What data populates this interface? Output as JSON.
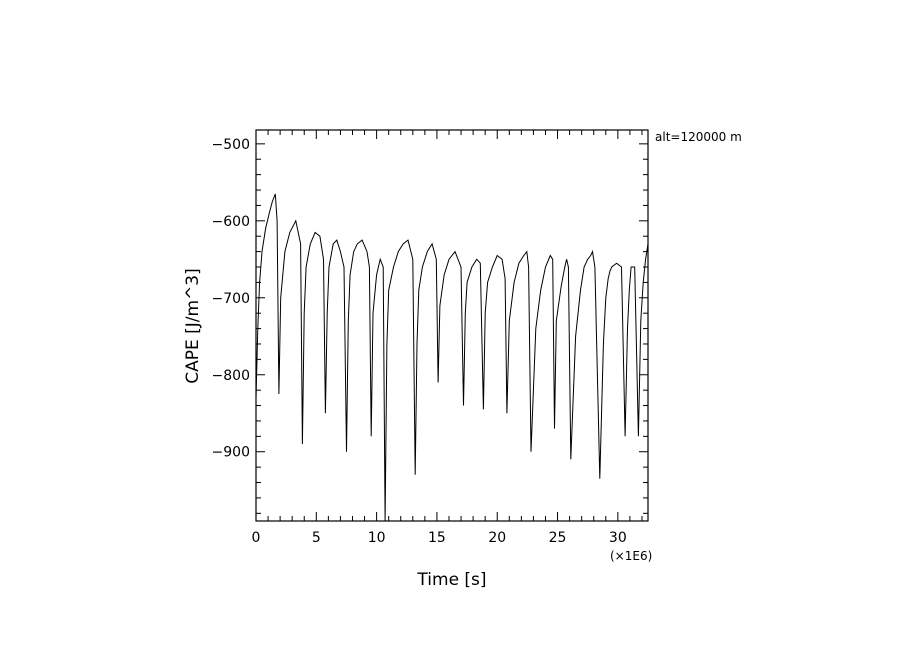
{
  "chart_data": {
    "type": "line",
    "title": "",
    "xlabel": "Time [s]",
    "ylabel": "CAPE [J/m^3]",
    "x_scale_note": "(×1E6)",
    "annotation": "alt=120000 m",
    "xlim": [
      0,
      32.5
    ],
    "ylim": [
      -990,
      -482
    ],
    "x_ticks": [
      0,
      5,
      10,
      15,
      20,
      25,
      30
    ],
    "y_ticks": [
      -500,
      -600,
      -700,
      -800,
      -900
    ],
    "line_color": "#000000",
    "grid": false,
    "series": [
      {
        "x": [
          0.0,
          0.15,
          0.3,
          0.5,
          0.8,
          1.1,
          1.35,
          1.6,
          1.75,
          1.9,
          2.05,
          2.4,
          2.8,
          3.3,
          3.7,
          3.85,
          4.0,
          4.15,
          4.5,
          4.9,
          5.3,
          5.6,
          5.75,
          5.9,
          6.05,
          6.4,
          6.7,
          7.0,
          7.3,
          7.5,
          7.65,
          7.8,
          8.1,
          8.4,
          8.8,
          9.2,
          9.4,
          9.55,
          9.7,
          10.0,
          10.3,
          10.55,
          10.7,
          10.85,
          11.0,
          11.4,
          11.8,
          12.2,
          12.6,
          13.0,
          13.2,
          13.35,
          13.5,
          13.8,
          14.2,
          14.6,
          14.95,
          15.1,
          15.25,
          15.6,
          16.0,
          16.5,
          17.0,
          17.2,
          17.35,
          17.5,
          17.9,
          18.3,
          18.6,
          18.85,
          19.0,
          19.2,
          19.6,
          20.0,
          20.4,
          20.65,
          20.8,
          21.0,
          21.4,
          21.8,
          22.2,
          22.45,
          22.6,
          22.8,
          23.2,
          23.6,
          24.0,
          24.4,
          24.6,
          24.75,
          24.9,
          25.3,
          25.6,
          25.75,
          25.9,
          26.1,
          26.5,
          26.9,
          27.2,
          27.5,
          27.75,
          27.9,
          28.1,
          28.5,
          28.8,
          29.0,
          29.2,
          29.35,
          29.5,
          29.9,
          30.3,
          30.6,
          30.8,
          30.95,
          31.1,
          31.4,
          31.7,
          31.9,
          32.1,
          32.3,
          32.5
        ],
        "y": [
          -830,
          -740,
          -680,
          -640,
          -610,
          -590,
          -575,
          -565,
          -600,
          -825,
          -700,
          -640,
          -615,
          -600,
          -630,
          -890,
          -720,
          -660,
          -630,
          -615,
          -620,
          -650,
          -850,
          -720,
          -660,
          -630,
          -625,
          -640,
          -660,
          -900,
          -730,
          -670,
          -640,
          -630,
          -625,
          -640,
          -660,
          -880,
          -720,
          -670,
          -650,
          -660,
          -990,
          -760,
          -690,
          -660,
          -640,
          -630,
          -625,
          -650,
          -930,
          -760,
          -690,
          -660,
          -640,
          -630,
          -650,
          -810,
          -710,
          -670,
          -650,
          -640,
          -660,
          -840,
          -720,
          -680,
          -660,
          -650,
          -655,
          -845,
          -720,
          -680,
          -660,
          -645,
          -650,
          -675,
          -850,
          -730,
          -680,
          -655,
          -645,
          -640,
          -660,
          -900,
          -740,
          -690,
          -660,
          -645,
          -650,
          -870,
          -730,
          -685,
          -660,
          -650,
          -660,
          -910,
          -750,
          -690,
          -660,
          -650,
          -645,
          -640,
          -660,
          -935,
          -760,
          -700,
          -675,
          -665,
          -660,
          -655,
          -660,
          -880,
          -740,
          -690,
          -660,
          -660,
          -880,
          -730,
          -680,
          -650,
          -630
        ]
      }
    ]
  }
}
